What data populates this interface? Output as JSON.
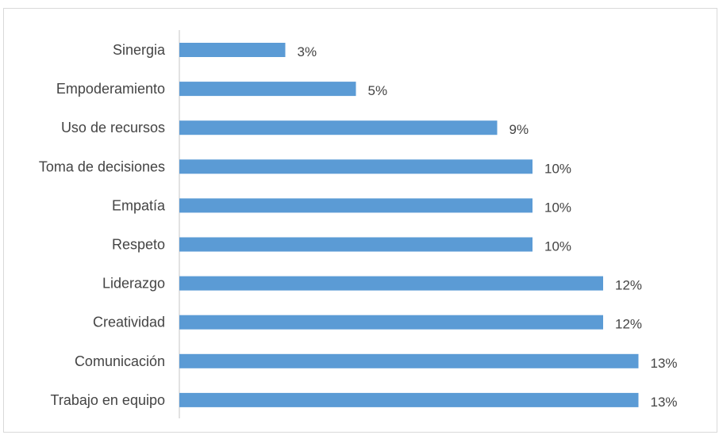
{
  "chart_data": {
    "type": "bar",
    "orientation": "horizontal",
    "categories": [
      "Sinergia",
      "Empoderamiento",
      "Uso de recursos",
      "Toma de decisiones",
      "Empatía",
      "Respeto",
      "Liderazgo",
      "Creatividad",
      "Comunicación",
      "Trabajo en equipo"
    ],
    "values": [
      3,
      5,
      9,
      10,
      10,
      10,
      12,
      12,
      13,
      13
    ],
    "value_labels": [
      "3%",
      "5%",
      "9%",
      "10%",
      "10%",
      "10%",
      "12%",
      "12%",
      "13%",
      "13%"
    ],
    "title": "",
    "xlabel": "",
    "ylabel": "",
    "xlim": [
      0,
      14
    ],
    "grid": false,
    "legend": "none",
    "colors": {
      "bar": "#5b9bd5",
      "axis": "#d9d9d9",
      "text": "#444444"
    }
  }
}
